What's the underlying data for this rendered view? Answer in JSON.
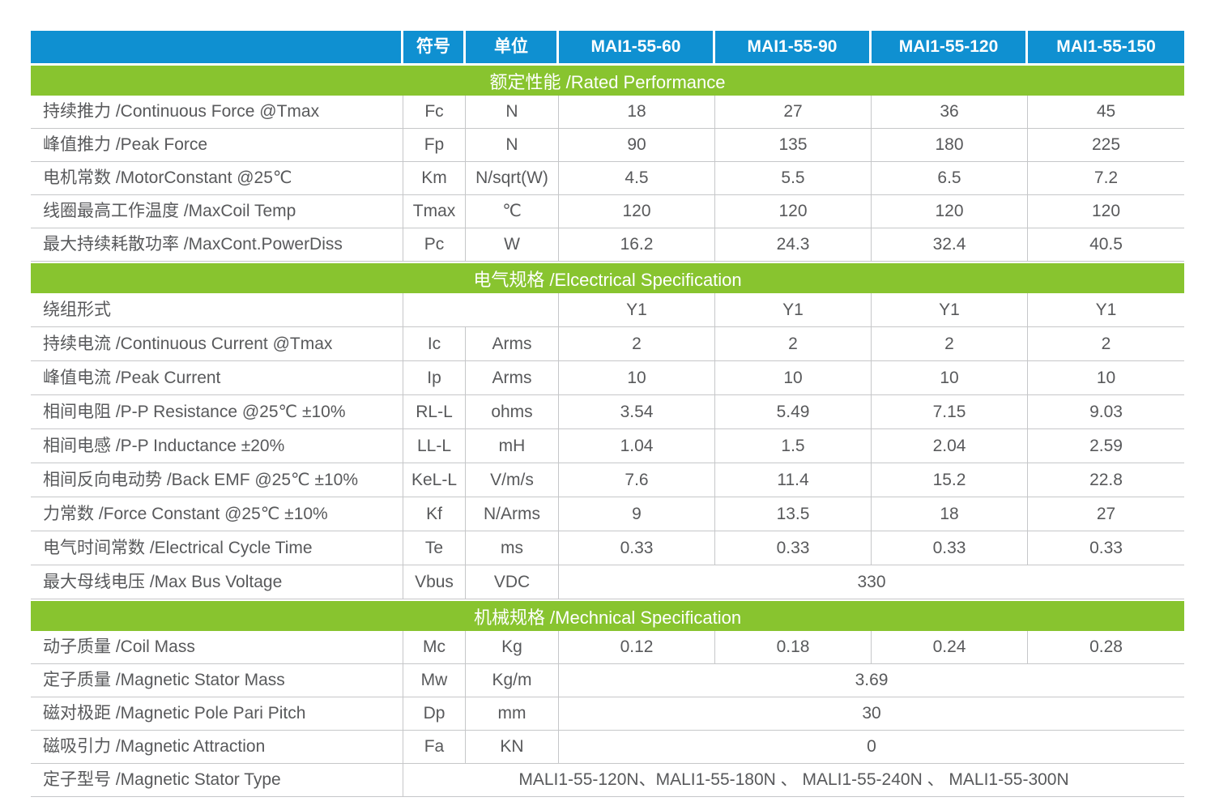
{
  "colors": {
    "header_blue": "#0f90d1",
    "section_green": "#88c42f",
    "border_gray": "#c6c7c9",
    "text_gray": "#58595b"
  },
  "table": {
    "header": {
      "corner": "",
      "symbol_col": "符号",
      "unit_col": "单位",
      "models": [
        "MAI1-55-60",
        "MAI1-55-90",
        "MAI1-55-120",
        "MAI1-55-150"
      ]
    },
    "sections": [
      {
        "title": "额定性能 /Rated Performance",
        "row_height": "rh40",
        "rows": [
          {
            "label": "持续推力 /Continuous Force @Tmax",
            "symbol": "Fc",
            "unit": "N",
            "merge": "none",
            "values": [
              "18",
              "27",
              "36",
              "45"
            ]
          },
          {
            "label": "峰值推力 /Peak Force",
            "symbol": "Fp",
            "unit": "N",
            "merge": "none",
            "values": [
              "90",
              "135",
              "180",
              "225"
            ]
          },
          {
            "label": "电机常数 /MotorConstant @25℃",
            "symbol": "Km",
            "unit": "N/sqrt(W)",
            "merge": "none",
            "values": [
              "4.5",
              "5.5",
              "6.5",
              "7.2"
            ]
          },
          {
            "label": "线圈最高工作温度 /MaxCoil Temp",
            "symbol": "Tmax",
            "unit": "℃",
            "merge": "none",
            "values": [
              "120",
              "120",
              "120",
              "120"
            ]
          },
          {
            "label": "最大持续耗散功率 /MaxCont.PowerDiss",
            "symbol": "Pc",
            "unit": "W",
            "merge": "none",
            "values": [
              "16.2",
              "24.3",
              "32.4",
              "40.5"
            ]
          }
        ]
      },
      {
        "title": "电气规格 /Elcectrical Specification",
        "row_height": "rh41",
        "rows": [
          {
            "label": "绕组形式",
            "symbol": "",
            "unit": "",
            "merge": "sym-unit",
            "values": [
              "Y1",
              "Y1",
              "Y1",
              "Y1"
            ]
          },
          {
            "label": "持续电流 /Continuous Current @Tmax",
            "symbol": "Ic",
            "unit": "Arms",
            "merge": "none",
            "values": [
              "2",
              "2",
              "2",
              "2"
            ]
          },
          {
            "label": "峰值电流 /Peak Current",
            "symbol": "Ip",
            "unit": "Arms",
            "merge": "none",
            "values": [
              "10",
              "10",
              "10",
              "10"
            ]
          },
          {
            "label": "相间电阻 /P-P Resistance @25℃ ±10%",
            "symbol": "RL-L",
            "unit": "ohms",
            "merge": "none",
            "values": [
              "3.54",
              "5.49",
              "7.15",
              "9.03"
            ]
          },
          {
            "label": "相间电感 /P-P Inductance ±20%",
            "symbol": "LL-L",
            "unit": "mH",
            "merge": "none",
            "values": [
              "1.04",
              "1.5",
              "2.04",
              "2.59"
            ]
          },
          {
            "label": "相间反向电动势 /Back EMF @25℃ ±10%",
            "symbol": "KeL-L",
            "unit": "V/m/s",
            "merge": "none",
            "values": [
              "7.6",
              "11.4",
              "15.2",
              "22.8"
            ]
          },
          {
            "label": "力常数 /Force Constant @25℃ ±10%",
            "symbol": "Kf",
            "unit": "N/Arms",
            "merge": "none",
            "values": [
              "9",
              "13.5",
              "18",
              "27"
            ]
          },
          {
            "label": "电气时间常数 /Electrical Cycle Time",
            "symbol": "Te",
            "unit": "ms",
            "merge": "none",
            "values": [
              "0.33",
              "0.33",
              "0.33",
              "0.33"
            ]
          },
          {
            "label": "最大母线电压 /Max Bus Voltage",
            "symbol": "Vbus",
            "unit": "VDC",
            "merge": "values",
            "value": "330"
          }
        ]
      },
      {
        "title": "机械规格 /Mechnical Specification",
        "row_height": "rh40",
        "rows": [
          {
            "label": "动子质量 /Coil Mass",
            "symbol": "Mc",
            "unit": "Kg",
            "merge": "none",
            "values": [
              "0.12",
              "0.18",
              "0.24",
              "0.28"
            ]
          },
          {
            "label": "定子质量 /Magnetic Stator Mass",
            "symbol": "Mw",
            "unit": "Kg/m",
            "merge": "values",
            "value": "3.69"
          },
          {
            "label": "磁对极距 /Magnetic Pole Pari Pitch",
            "symbol": "Dp",
            "unit": "mm",
            "merge": "values",
            "value": "30"
          },
          {
            "label": "磁吸引力 /Magnetic Attraction",
            "symbol": "Fa",
            "unit": "KN",
            "merge": "values",
            "value": "0"
          },
          {
            "label": "定子型号 /Magnetic Stator Type",
            "symbol": "",
            "unit": "",
            "merge": "all",
            "value": "MALI1-55-120N、MALI1-55-180N 、 MALI1-55-240N 、 MALI1-55-300N"
          }
        ]
      }
    ]
  }
}
